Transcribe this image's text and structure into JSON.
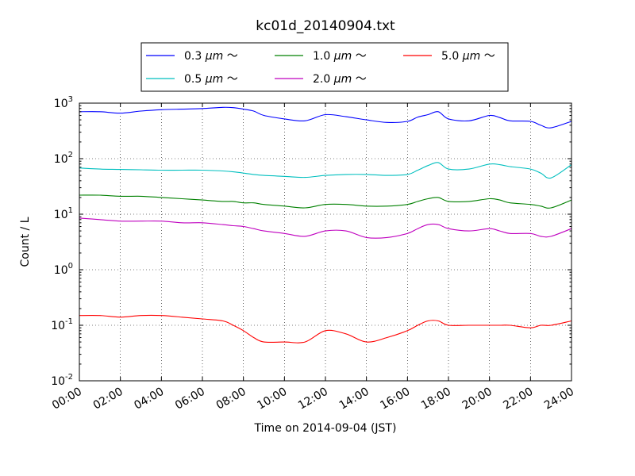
{
  "chart_data": {
    "type": "line",
    "title": "kc01d_20140904.txt",
    "xlabel": "Time on 2014-09-04 (JST)",
    "ylabel": "Count / L",
    "x_unit": "hour",
    "xlim": [
      0,
      24
    ],
    "xticks": [
      0,
      2,
      4,
      6,
      8,
      10,
      12,
      14,
      16,
      18,
      20,
      22,
      24
    ],
    "xtick_labels": [
      "00:00",
      "02:00",
      "04:00",
      "06:00",
      "08:00",
      "10:00",
      "12:00",
      "14:00",
      "16:00",
      "18:00",
      "20:00",
      "22:00",
      "24:00"
    ],
    "yscale": "log",
    "ylim": [
      0.01,
      1000
    ],
    "ytick_exponents": [
      -2,
      -1,
      0,
      1,
      2,
      3
    ],
    "ytick_base": "10",
    "grid": true,
    "legend": {
      "location": "above plot, centered",
      "columns": 3
    },
    "x": [
      0,
      1,
      2,
      3,
      4,
      5,
      6,
      7,
      7.5,
      8,
      8.5,
      9,
      10,
      11,
      12,
      13,
      14,
      15,
      16,
      16.5,
      17,
      17.5,
      18,
      19,
      20,
      20.5,
      21,
      22,
      22.5,
      23,
      24
    ],
    "series": [
      {
        "name": "0.3 μm ～",
        "label_size": "0.3",
        "label_unit": "μm",
        "label_suffix": "～",
        "color": "#0000ff",
        "values": [
          700,
          700,
          660,
          720,
          760,
          780,
          800,
          840,
          830,
          780,
          720,
          600,
          520,
          480,
          620,
          570,
          500,
          450,
          470,
          560,
          620,
          700,
          520,
          480,
          600,
          550,
          480,
          470,
          400,
          360,
          470
        ]
      },
      {
        "name": "0.5 μm ～",
        "label_size": "0.5",
        "label_unit": "μm",
        "label_suffix": "～",
        "color": "#00bfbf",
        "values": [
          68,
          65,
          64,
          63,
          62,
          62,
          62,
          60,
          58,
          55,
          52,
          50,
          48,
          46,
          50,
          52,
          52,
          50,
          52,
          62,
          75,
          85,
          65,
          65,
          80,
          78,
          72,
          65,
          55,
          45,
          78
        ]
      },
      {
        "name": "1.0 μm ～",
        "label_size": "1.0",
        "label_unit": "μm",
        "label_suffix": "～",
        "color": "#008000",
        "values": [
          22,
          22,
          21,
          21,
          20,
          19,
          18,
          17,
          17,
          16,
          16,
          15,
          14,
          13,
          15,
          15,
          14,
          14,
          15,
          17,
          19,
          20,
          17,
          17,
          19,
          18,
          16,
          15,
          14,
          13,
          18
        ]
      },
      {
        "name": "2.0 μm ～",
        "label_size": "2.0",
        "label_unit": "μm",
        "label_suffix": "～",
        "color": "#bf00bf",
        "values": [
          8.5,
          8,
          7.5,
          7.5,
          7.5,
          7,
          7,
          6.5,
          6.2,
          6,
          5.5,
          5,
          4.5,
          4,
          5,
          5,
          3.8,
          3.8,
          4.5,
          5.5,
          6.5,
          6.5,
          5.5,
          5,
          5.5,
          5,
          4.5,
          4.5,
          4,
          4,
          5.5
        ]
      },
      {
        "name": "5.0 μm ～",
        "label_size": "5.0",
        "label_unit": "μm",
        "label_suffix": "～",
        "color": "#ff0000",
        "values": [
          0.15,
          0.15,
          0.14,
          0.15,
          0.15,
          0.14,
          0.13,
          0.12,
          0.1,
          0.08,
          0.06,
          0.05,
          0.05,
          0.05,
          0.08,
          0.07,
          0.05,
          0.06,
          0.08,
          0.1,
          0.12,
          0.12,
          0.1,
          0.1,
          0.1,
          0.1,
          0.1,
          0.09,
          0.1,
          0.1,
          0.12
        ]
      }
    ]
  }
}
